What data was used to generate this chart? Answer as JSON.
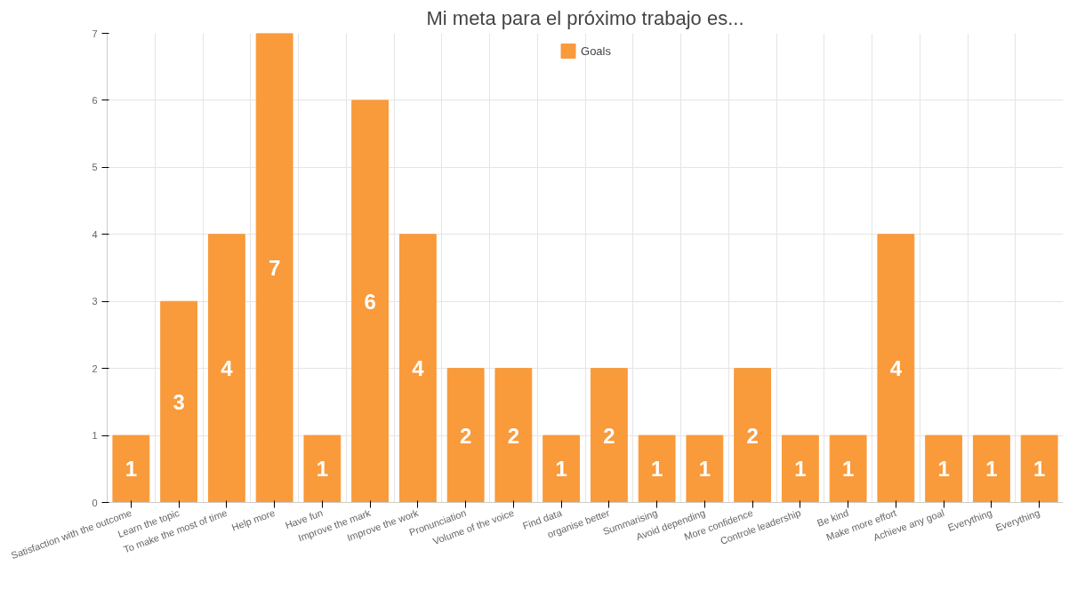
{
  "chart_data": {
    "type": "bar",
    "title": "Mi meta para el próximo trabajo es...",
    "categories": [
      "Satisfaction with the outcome",
      "Learn the topic",
      "To make the most of time",
      "Help more",
      "Have fun",
      "Improve the mark",
      "Improve the work",
      "Pronunciation",
      "Volume of the voice",
      "Find data",
      "organise better",
      "Summarising",
      "Avoid depending",
      "More confidence",
      "Controle leadership",
      "Be kind",
      "Make more effort",
      "Achieve any goal",
      "Everything",
      "Everything"
    ],
    "series": [
      {
        "name": "Goals",
        "color": "#f99a3b",
        "values": [
          1,
          3,
          4,
          7,
          1,
          6,
          4,
          2,
          2,
          1,
          2,
          1,
          1,
          2,
          1,
          1,
          4,
          1,
          1,
          1
        ]
      }
    ],
    "ylim": [
      0,
      7
    ],
    "yticks": [
      0,
      1,
      2,
      3,
      4,
      5,
      6,
      7
    ],
    "grid": true,
    "legend": "top",
    "data_labels": true
  }
}
